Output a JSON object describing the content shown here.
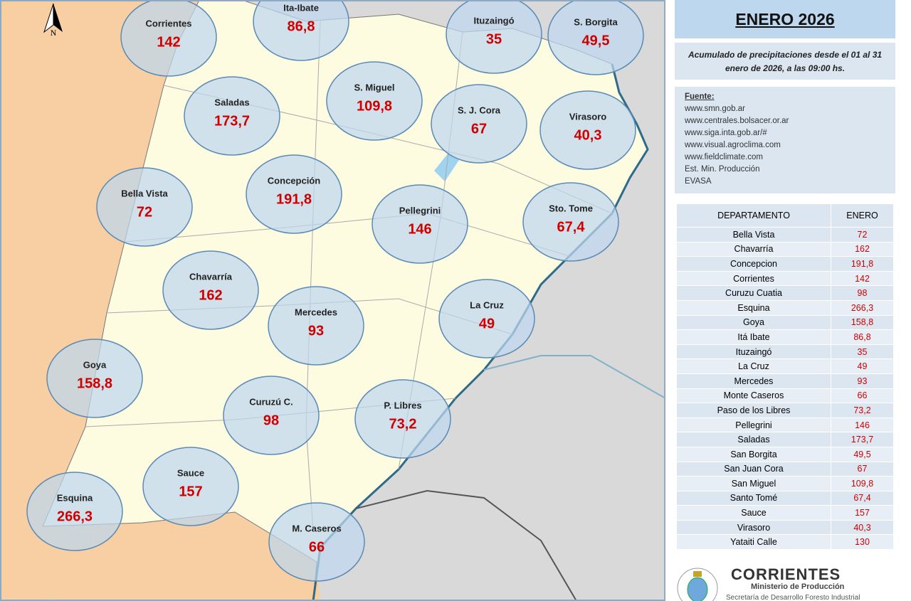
{
  "header": {
    "title": "ENERO 2026",
    "description": "Acumulado de precipitaciones desde el 01 al 31 enero de 2026, a las 09:00 hs.",
    "compass": "N"
  },
  "sources": {
    "title": "Fuente:",
    "items": [
      "www.smn.gob.ar",
      "www.centrales.bolsacer.or.ar",
      "www.siga.inta.gob.ar/#",
      "www.visual.agroclima.com",
      "www.fieldclimate.com",
      "Est. Min. Producción",
      "EVASA"
    ]
  },
  "map": {
    "stations": [
      {
        "name": "Corrientes",
        "value": "142"
      },
      {
        "name": "Ita-Ibate",
        "value": "86,8"
      },
      {
        "name": "Ituzaingó",
        "value": "35"
      },
      {
        "name": "S. Borgita",
        "value": "49,5"
      },
      {
        "name": "Saladas",
        "value": "173,7"
      },
      {
        "name": "S. Miguel",
        "value": "109,8"
      },
      {
        "name": "S. J. Cora",
        "value": "67"
      },
      {
        "name": "Virasoro",
        "value": "40,3"
      },
      {
        "name": "Bella Vista",
        "value": "72"
      },
      {
        "name": "Concepción",
        "value": "191,8"
      },
      {
        "name": "Pellegrini",
        "value": "146"
      },
      {
        "name": "Sto. Tome",
        "value": "67,4"
      },
      {
        "name": "Chavarría",
        "value": "162"
      },
      {
        "name": "Mercedes",
        "value": "93"
      },
      {
        "name": "La Cruz",
        "value": "49"
      },
      {
        "name": "Goya",
        "value": "158,8"
      },
      {
        "name": "Curuzú C.",
        "value": "98"
      },
      {
        "name": "P. Libres",
        "value": "73,2"
      },
      {
        "name": "Sauce",
        "value": "157"
      },
      {
        "name": "Esquina",
        "value": "266,3"
      },
      {
        "name": "M. Caseros",
        "value": "66"
      }
    ]
  },
  "table": {
    "header": [
      "DEPARTAMENTO",
      "ENERO"
    ],
    "rows": [
      [
        "Bella Vista",
        "72"
      ],
      [
        "Chavarría",
        "162"
      ],
      [
        "Concepcion",
        "191,8"
      ],
      [
        "Corrientes",
        "142"
      ],
      [
        "Curuzu Cuatia",
        "98"
      ],
      [
        "Esquina",
        "266,3"
      ],
      [
        "Goya",
        "158,8"
      ],
      [
        "Itá Ibate",
        "86,8"
      ],
      [
        "Ituzaingó",
        "35"
      ],
      [
        "La Cruz",
        "49"
      ],
      [
        "Mercedes",
        "93"
      ],
      [
        "Monte Caseros",
        "66"
      ],
      [
        "Paso de los Libres",
        "73,2"
      ],
      [
        "Pellegrini",
        "146"
      ],
      [
        "Saladas",
        "173,7"
      ],
      [
        "San Borgita",
        "49,5"
      ],
      [
        "San Juan Cora",
        "67"
      ],
      [
        "San Miguel",
        "109,8"
      ],
      [
        "Santo Tomé",
        "67,4"
      ],
      [
        "Sauce",
        "157"
      ],
      [
        "Virasoro",
        "40,3"
      ],
      [
        "Yataiti Calle",
        "130"
      ]
    ]
  },
  "logo": {
    "title": "CORRIENTES",
    "subtitle": "Ministerio de Producción",
    "line": "Secretaría de Desarrollo Foresto Industrial"
  }
}
